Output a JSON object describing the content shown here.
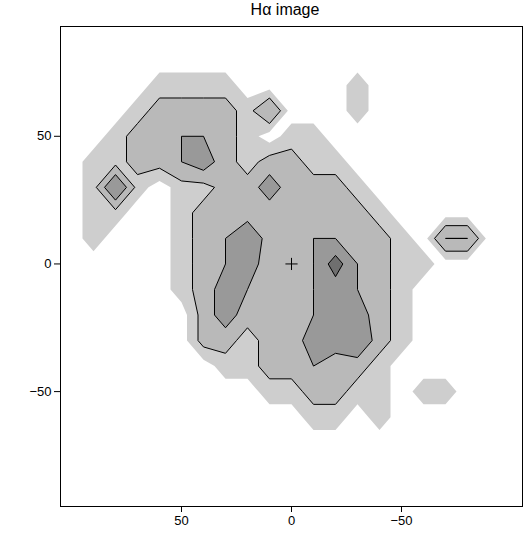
{
  "chart_data": {
    "type": "contour",
    "title": "Hα image",
    "xlim": [
      105,
      -105
    ],
    "ylim": [
      -95,
      93
    ],
    "xticks": [
      50,
      0,
      -50
    ],
    "yticks": [
      -50,
      0,
      50
    ],
    "grid": false,
    "cells": {
      "x1": 105,
      "x2": -105,
      "y1": 95,
      "y2": -95,
      "width": 21,
      "height": 19,
      "values": [
        [
          0,
          0,
          0,
          0,
          0,
          0,
          0,
          0,
          0,
          0,
          0,
          0,
          0,
          0,
          0,
          0,
          0,
          0,
          0,
          0,
          0
        ],
        [
          0,
          0,
          0,
          0,
          0,
          0,
          0,
          0,
          0,
          0,
          0,
          0,
          0,
          0,
          0,
          0,
          0,
          0,
          0,
          0,
          0
        ],
        [
          0,
          0,
          0,
          0,
          1,
          1,
          1,
          1,
          0,
          0,
          0,
          0,
          0,
          1,
          0,
          0,
          0,
          0,
          0,
          0,
          0
        ],
        [
          0,
          0,
          0,
          1,
          2,
          2,
          2,
          2,
          1,
          3,
          0,
          0,
          0,
          1,
          0,
          0,
          0,
          0,
          0,
          0,
          0
        ],
        [
          0,
          0,
          1,
          2,
          2,
          3,
          3,
          2,
          1,
          0,
          1,
          1,
          0,
          0,
          0,
          0,
          0,
          0,
          0,
          0,
          0
        ],
        [
          0,
          1,
          1,
          2,
          2,
          3,
          4,
          2,
          1,
          2,
          2,
          1,
          1,
          0,
          0,
          0,
          0,
          0,
          0,
          0,
          0
        ],
        [
          0,
          1,
          5,
          1,
          0,
          1,
          1,
          2,
          2,
          4,
          2,
          2,
          2,
          1,
          0,
          0,
          0,
          0,
          0,
          0,
          0
        ],
        [
          0,
          1,
          1,
          0,
          0,
          1,
          2,
          2,
          2,
          2,
          2,
          2,
          2,
          2,
          1,
          0,
          0,
          0,
          0,
          0,
          0
        ],
        [
          0,
          1,
          0,
          0,
          0,
          1,
          2,
          3,
          5,
          2,
          2,
          3,
          3,
          2,
          2,
          1,
          0,
          3,
          3,
          0,
          0
        ],
        [
          0,
          0,
          0,
          0,
          0,
          1,
          2,
          3,
          4,
          2,
          2,
          3,
          6,
          3,
          2,
          1,
          1,
          0,
          0,
          0,
          0
        ],
        [
          0,
          0,
          0,
          0,
          0,
          1,
          2,
          4,
          3,
          2,
          2,
          3,
          4,
          3,
          2,
          1,
          0,
          0,
          0,
          0,
          0
        ],
        [
          0,
          0,
          0,
          0,
          0,
          0,
          2,
          4,
          2,
          2,
          2,
          3,
          4,
          4,
          2,
          1,
          0,
          0,
          0,
          0,
          0
        ],
        [
          0,
          0,
          0,
          0,
          0,
          0,
          2,
          2,
          1,
          2,
          2,
          4,
          4,
          5,
          2,
          1,
          0,
          0,
          0,
          0,
          0
        ],
        [
          0,
          0,
          0,
          0,
          0,
          0,
          0,
          1,
          1,
          2,
          2,
          3,
          2,
          2,
          1,
          0,
          0,
          0,
          0,
          0,
          0
        ],
        [
          0,
          0,
          0,
          0,
          0,
          0,
          0,
          0,
          0,
          1,
          1,
          2,
          2,
          1,
          1,
          0,
          1,
          1,
          0,
          0,
          0
        ],
        [
          0,
          0,
          0,
          0,
          0,
          0,
          0,
          0,
          0,
          0,
          0,
          1,
          1,
          0,
          1,
          0,
          0,
          0,
          0,
          0,
          0
        ],
        [
          0,
          0,
          0,
          0,
          0,
          0,
          0,
          0,
          0,
          0,
          0,
          0,
          0,
          0,
          0,
          0,
          0,
          0,
          0,
          0,
          0
        ],
        [
          0,
          0,
          0,
          0,
          0,
          0,
          0,
          0,
          0,
          0,
          0,
          0,
          0,
          0,
          0,
          0,
          0,
          0,
          0,
          0,
          0
        ],
        [
          0,
          0,
          0,
          0,
          0,
          0,
          0,
          0,
          0,
          0,
          0,
          0,
          0,
          0,
          0,
          0,
          0,
          0,
          0,
          0,
          0
        ]
      ]
    },
    "zlim": [
      0,
      8
    ],
    "fill_levels": [
      0.5,
      1.5,
      3,
      5
    ],
    "contour_levels": [
      1.5,
      3,
      5
    ],
    "center": [
      0,
      0
    ],
    "marker": "plus"
  }
}
